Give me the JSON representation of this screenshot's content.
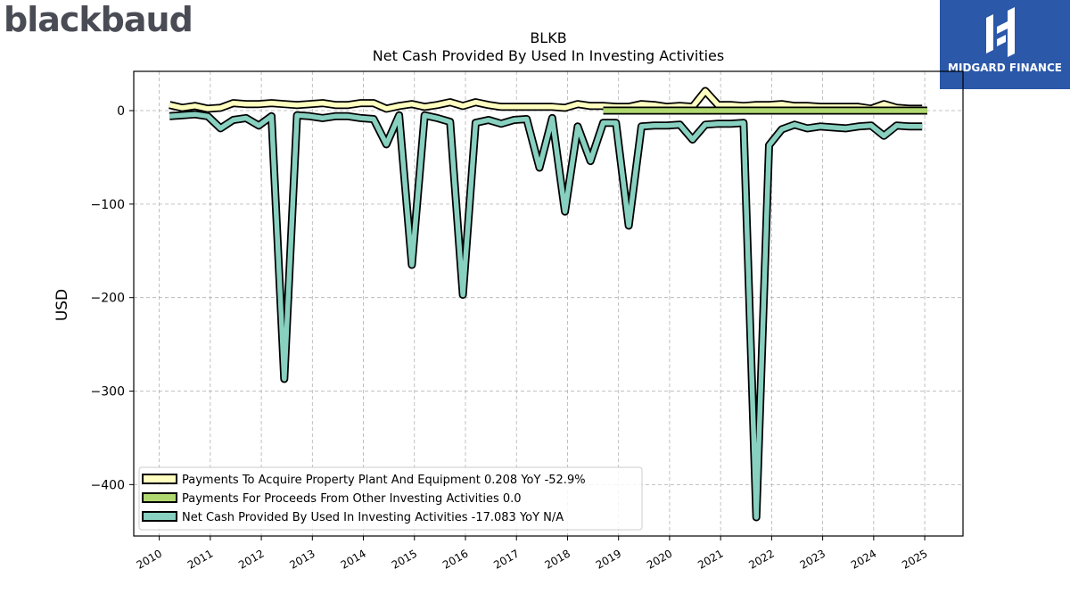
{
  "logos": {
    "left_text": "blackbaud",
    "right_text": "MIDGARD FINANCE"
  },
  "colors": {
    "ppe": "#ffffc0",
    "other": "#b0d870",
    "net": "#88d0c0",
    "logo_right_bg": "#2b58a8",
    "logo_left_text": "#4a4c55"
  },
  "chart_data": {
    "type": "line",
    "title": "BLKB",
    "subtitle": "Net Cash Provided By Used In Investing Activities",
    "ylabel": "USD",
    "xlabel": "",
    "ylim": [
      -455,
      42
    ],
    "xlim": [
      2009.5,
      2025.75
    ],
    "grid": true,
    "legend_position": "lower-left",
    "x_ticks": [
      2010,
      2011,
      2012,
      2013,
      2014,
      2015,
      2016,
      2017,
      2018,
      2019,
      2020,
      2021,
      2022,
      2023,
      2024,
      2025
    ],
    "x_tick_labels": [
      "2010",
      "2011",
      "2012",
      "2013",
      "2014",
      "2015",
      "2016",
      "2017",
      "2018",
      "2019",
      "2020",
      "2021",
      "2022",
      "2023",
      "2024",
      "2025"
    ],
    "y_ticks": [
      0,
      -100,
      -200,
      -300,
      -400
    ],
    "y_tick_labels": [
      "0",
      "−100",
      "−200",
      "−300",
      "−400"
    ],
    "series": [
      {
        "name": "Payments To Acquire Property Plant And Equipment",
        "legend_label": "Payments To Acquire Property Plant And Equipment  0.208 YoY -52.9%",
        "color": "#ffffc0",
        "points": [
          [
            2010.2,
            6
          ],
          [
            2010.45,
            3
          ],
          [
            2010.7,
            5
          ],
          [
            2010.95,
            2
          ],
          [
            2011.2,
            3
          ],
          [
            2011.45,
            8
          ],
          [
            2011.7,
            7
          ],
          [
            2011.95,
            7
          ],
          [
            2012.2,
            8
          ],
          [
            2012.45,
            7
          ],
          [
            2012.7,
            6
          ],
          [
            2012.95,
            7
          ],
          [
            2013.2,
            8
          ],
          [
            2013.45,
            6
          ],
          [
            2013.7,
            6
          ],
          [
            2013.95,
            8
          ],
          [
            2014.2,
            8
          ],
          [
            2014.45,
            2
          ],
          [
            2014.7,
            5
          ],
          [
            2014.95,
            7
          ],
          [
            2015.2,
            4
          ],
          [
            2015.45,
            6
          ],
          [
            2015.7,
            9
          ],
          [
            2015.95,
            5
          ],
          [
            2016.2,
            9
          ],
          [
            2016.45,
            6
          ],
          [
            2016.7,
            4
          ],
          [
            2016.95,
            4
          ],
          [
            2017.2,
            4
          ],
          [
            2017.45,
            4
          ],
          [
            2017.7,
            4
          ],
          [
            2017.95,
            3
          ],
          [
            2018.2,
            7
          ],
          [
            2018.45,
            5
          ],
          [
            2018.7,
            5
          ],
          [
            2018.95,
            4
          ],
          [
            2019.2,
            4
          ],
          [
            2019.45,
            7
          ],
          [
            2019.7,
            6
          ],
          [
            2019.95,
            4
          ],
          [
            2020.2,
            5
          ],
          [
            2020.45,
            4
          ],
          [
            2020.7,
            21
          ],
          [
            2020.95,
            6
          ],
          [
            2021.2,
            6
          ],
          [
            2021.45,
            5
          ],
          [
            2021.7,
            6
          ],
          [
            2021.95,
            6
          ],
          [
            2022.2,
            7
          ],
          [
            2022.45,
            5
          ],
          [
            2022.7,
            5
          ],
          [
            2022.95,
            4
          ],
          [
            2023.2,
            4
          ],
          [
            2023.45,
            4
          ],
          [
            2023.7,
            4
          ],
          [
            2023.95,
            2
          ],
          [
            2024.2,
            7
          ],
          [
            2024.45,
            3
          ],
          [
            2024.7,
            2
          ],
          [
            2024.95,
            2
          ]
        ]
      },
      {
        "name": "Payments For Proceeds From Other Investing Activities",
        "legend_label": "Payments For Proceeds From Other Investing Activities  0.0",
        "color": "#b0d870",
        "points": [
          [
            2018.7,
            0
          ],
          [
            2025.05,
            0
          ]
        ]
      },
      {
        "name": "Net Cash Provided By Used In Investing Activities",
        "legend_label": "Net Cash Provided By Used In Investing Activities  -17.083 YoY N/A",
        "color": "#88d0c0",
        "points": [
          [
            2010.2,
            -6
          ],
          [
            2010.45,
            -5
          ],
          [
            2010.7,
            -4
          ],
          [
            2010.95,
            -6
          ],
          [
            2011.2,
            -19
          ],
          [
            2011.45,
            -10
          ],
          [
            2011.7,
            -8
          ],
          [
            2011.95,
            -16
          ],
          [
            2012.2,
            -6
          ],
          [
            2012.45,
            -287
          ],
          [
            2012.7,
            -5
          ],
          [
            2012.95,
            -6
          ],
          [
            2013.2,
            -8
          ],
          [
            2013.45,
            -6
          ],
          [
            2013.7,
            -6
          ],
          [
            2013.95,
            -8
          ],
          [
            2014.2,
            -9
          ],
          [
            2014.45,
            -36
          ],
          [
            2014.7,
            -5
          ],
          [
            2014.95,
            -165
          ],
          [
            2015.2,
            -5
          ],
          [
            2015.45,
            -8
          ],
          [
            2015.7,
            -12
          ],
          [
            2015.95,
            -197
          ],
          [
            2016.2,
            -13
          ],
          [
            2016.45,
            -10
          ],
          [
            2016.7,
            -14
          ],
          [
            2016.95,
            -10
          ],
          [
            2017.2,
            -9
          ],
          [
            2017.45,
            -61
          ],
          [
            2017.7,
            -8
          ],
          [
            2017.95,
            -108
          ],
          [
            2018.2,
            -17
          ],
          [
            2018.45,
            -54
          ],
          [
            2018.7,
            -13
          ],
          [
            2018.95,
            -13
          ],
          [
            2019.2,
            -123
          ],
          [
            2019.45,
            -17
          ],
          [
            2019.7,
            -16
          ],
          [
            2019.95,
            -16
          ],
          [
            2020.2,
            -15
          ],
          [
            2020.45,
            -31
          ],
          [
            2020.7,
            -15
          ],
          [
            2020.95,
            -14
          ],
          [
            2021.2,
            -14
          ],
          [
            2021.45,
            -13
          ],
          [
            2021.7,
            -435
          ],
          [
            2021.95,
            -37
          ],
          [
            2022.2,
            -20
          ],
          [
            2022.45,
            -15
          ],
          [
            2022.7,
            -19
          ],
          [
            2022.95,
            -17
          ],
          [
            2023.2,
            -18
          ],
          [
            2023.45,
            -19
          ],
          [
            2023.7,
            -17
          ],
          [
            2023.95,
            -16
          ],
          [
            2024.2,
            -27
          ],
          [
            2024.45,
            -16
          ],
          [
            2024.7,
            -17
          ],
          [
            2024.95,
            -17
          ]
        ]
      }
    ]
  }
}
